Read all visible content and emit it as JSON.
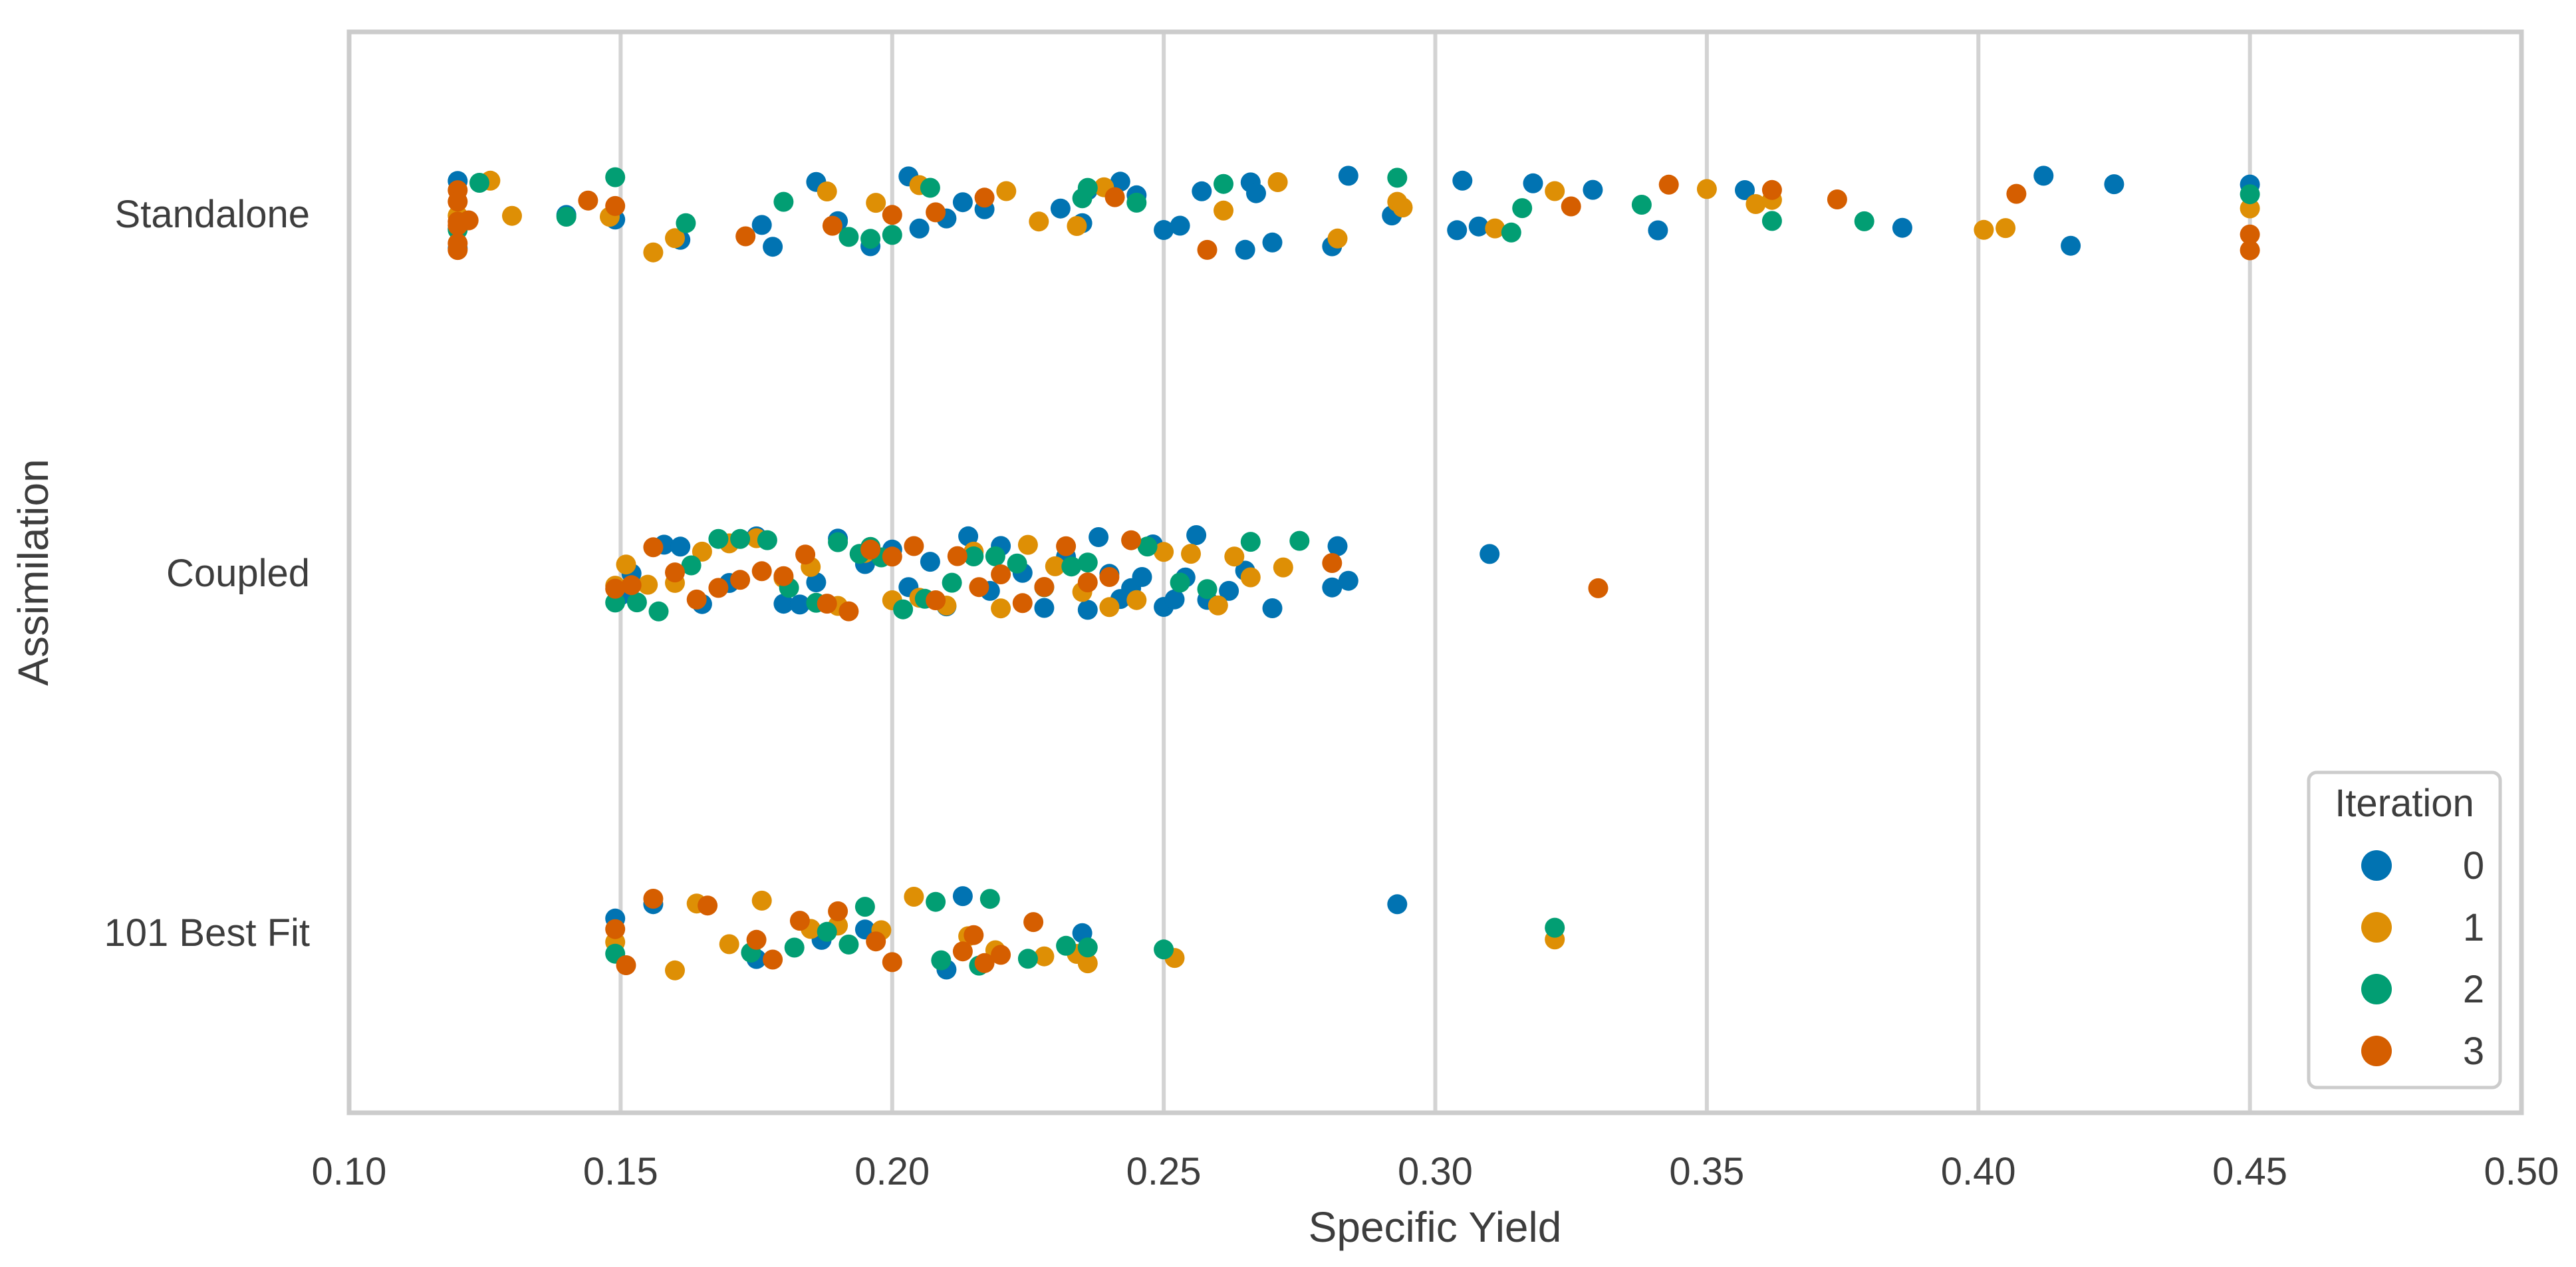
{
  "chart_data": {
    "type": "scatter",
    "subtype": "strip",
    "title": "",
    "xlabel": "Specific Yield",
    "ylabel": "Assimilation",
    "xlim": [
      0.1,
      0.5
    ],
    "xticks": [
      0.1,
      0.15,
      0.2,
      0.25,
      0.3,
      0.35,
      0.4,
      0.45,
      0.5
    ],
    "xtick_labels": [
      "0.10",
      "0.15",
      "0.20",
      "0.25",
      "0.30",
      "0.35",
      "0.40",
      "0.45",
      "0.50"
    ],
    "categories": [
      "Standalone",
      "Coupled",
      "101 Best Fit"
    ],
    "grid": "vertical",
    "legend": {
      "title": "Iteration",
      "position": "bottom-right",
      "entries": [
        {
          "label": "0",
          "color": "#0173b2"
        },
        {
          "label": "1",
          "color": "#de8f05"
        },
        {
          "label": "2",
          "color": "#029e73"
        },
        {
          "label": "3",
          "color": "#d55e00"
        }
      ]
    },
    "series": [
      {
        "name": "0",
        "color": "#0173b2",
        "points": [
          {
            "category": "Standalone",
            "values": [
              0.12,
              0.12,
              0.12,
              0.14,
              0.149,
              0.161,
              0.176,
              0.178,
              0.186,
              0.19,
              0.196,
              0.203,
              0.205,
              0.21,
              0.213,
              0.217,
              0.231,
              0.235,
              0.236,
              0.242,
              0.245,
              0.25,
              0.253,
              0.257,
              0.265,
              0.266,
              0.267,
              0.27,
              0.281,
              0.284,
              0.292,
              0.304,
              0.305,
              0.308,
              0.318,
              0.329,
              0.341,
              0.357,
              0.386,
              0.412,
              0.417,
              0.425,
              0.45
            ]
          },
          {
            "category": "Coupled",
            "values": [
              0.15,
              0.152,
              0.158,
              0.161,
              0.165,
              0.17,
              0.175,
              0.18,
              0.183,
              0.186,
              0.19,
              0.195,
              0.2,
              0.203,
              0.207,
              0.21,
              0.214,
              0.218,
              0.22,
              0.224,
              0.228,
              0.232,
              0.236,
              0.238,
              0.24,
              0.242,
              0.244,
              0.246,
              0.248,
              0.25,
              0.252,
              0.254,
              0.256,
              0.258,
              0.262,
              0.265,
              0.27,
              0.281,
              0.282,
              0.284,
              0.31
            ]
          },
          {
            "category": "101 Best Fit",
            "values": [
              0.149,
              0.156,
              0.175,
              0.187,
              0.195,
              0.21,
              0.213,
              0.235,
              0.293
            ]
          }
        ]
      },
      {
        "name": "1",
        "color": "#de8f05",
        "points": [
          {
            "category": "Standalone",
            "values": [
              0.12,
              0.126,
              0.13,
              0.148,
              0.156,
              0.16,
              0.188,
              0.197,
              0.205,
              0.221,
              0.227,
              0.234,
              0.239,
              0.261,
              0.271,
              0.282,
              0.293,
              0.294,
              0.311,
              0.322,
              0.35,
              0.359,
              0.362,
              0.401,
              0.405,
              0.45
            ]
          },
          {
            "category": "Coupled",
            "values": [
              0.149,
              0.151,
              0.155,
              0.16,
              0.165,
              0.17,
              0.175,
              0.18,
              0.185,
              0.19,
              0.195,
              0.2,
              0.205,
              0.21,
              0.215,
              0.22,
              0.225,
              0.23,
              0.235,
              0.24,
              0.245,
              0.25,
              0.255,
              0.26,
              0.263,
              0.266,
              0.272
            ]
          },
          {
            "category": "101 Best Fit",
            "values": [
              0.149,
              0.16,
              0.164,
              0.17,
              0.176,
              0.185,
              0.19,
              0.198,
              0.204,
              0.214,
              0.219,
              0.228,
              0.234,
              0.236,
              0.252,
              0.322
            ]
          }
        ]
      },
      {
        "name": "2",
        "color": "#029e73",
        "points": [
          {
            "category": "Standalone",
            "values": [
              0.12,
              0.124,
              0.14,
              0.149,
              0.162,
              0.18,
              0.192,
              0.196,
              0.2,
              0.207,
              0.235,
              0.236,
              0.245,
              0.261,
              0.293,
              0.314,
              0.316,
              0.338,
              0.362,
              0.379,
              0.45
            ]
          },
          {
            "category": "Coupled",
            "values": [
              0.149,
              0.153,
              0.157,
              0.163,
              0.168,
              0.172,
              0.177,
              0.181,
              0.186,
              0.19,
              0.194,
              0.196,
              0.198,
              0.202,
              0.206,
              0.211,
              0.215,
              0.219,
              0.223,
              0.228,
              0.233,
              0.236,
              0.247,
              0.253,
              0.258,
              0.266,
              0.275
            ]
          },
          {
            "category": "101 Best Fit",
            "values": [
              0.149,
              0.174,
              0.182,
              0.188,
              0.192,
              0.195,
              0.208,
              0.209,
              0.216,
              0.218,
              0.225,
              0.232,
              0.236,
              0.25,
              0.322
            ]
          }
        ]
      },
      {
        "name": "3",
        "color": "#d55e00",
        "points": [
          {
            "category": "Standalone",
            "values": [
              0.12,
              0.12,
              0.12,
              0.12,
              0.12,
              0.12,
              0.122,
              0.144,
              0.149,
              0.173,
              0.189,
              0.2,
              0.208,
              0.217,
              0.241,
              0.258,
              0.325,
              0.343,
              0.362,
              0.374,
              0.407,
              0.45,
              0.45
            ]
          },
          {
            "category": "Coupled",
            "values": [
              0.149,
              0.152,
              0.156,
              0.16,
              0.164,
              0.168,
              0.172,
              0.176,
              0.18,
              0.184,
              0.188,
              0.192,
              0.196,
              0.2,
              0.204,
              0.208,
              0.212,
              0.216,
              0.22,
              0.224,
              0.228,
              0.232,
              0.236,
              0.24,
              0.244,
              0.281,
              0.33
            ]
          },
          {
            "category": "101 Best Fit",
            "values": [
              0.149,
              0.151,
              0.156,
              0.166,
              0.175,
              0.178,
              0.183,
              0.19,
              0.197,
              0.2,
              0.213,
              0.215,
              0.217,
              0.22,
              0.226
            ]
          }
        ]
      }
    ]
  }
}
